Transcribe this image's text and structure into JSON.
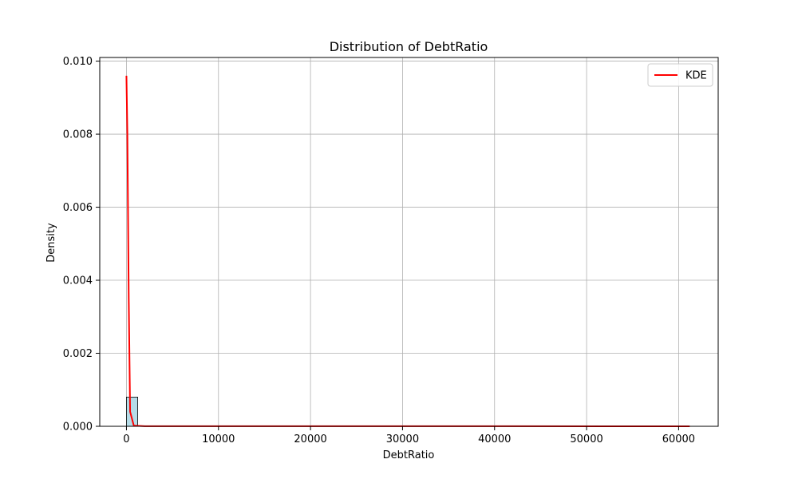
{
  "chart_data": {
    "type": "bar",
    "title": "Distribution of DebtRatio",
    "xlabel": "DebtRatio",
    "ylabel": "Density",
    "xlim": [
      -2900,
      64300
    ],
    "ylim": [
      0,
      0.0101
    ],
    "xticks": [
      0,
      10000,
      20000,
      30000,
      40000,
      50000,
      60000
    ],
    "xtick_labels": [
      "0",
      "10000",
      "20000",
      "30000",
      "40000",
      "50000",
      "60000"
    ],
    "yticks": [
      0,
      0.002,
      0.004,
      0.006,
      0.008,
      0.01
    ],
    "ytick_labels": [
      "0.000",
      "0.002",
      "0.004",
      "0.006",
      "0.008",
      "0.010"
    ],
    "grid": true,
    "legend_position": "top-right",
    "histogram": {
      "bin_width": 1225,
      "bins": [
        {
          "x0": 0,
          "x1": 1225,
          "density": 0.0008
        },
        {
          "x0": 1225,
          "x1": 2450,
          "density": 2e-06
        },
        {
          "x0": 2450,
          "x1": 3675,
          "density": 1e-06
        },
        {
          "x0": 3675,
          "x1": 4900,
          "density": 5e-07
        }
      ],
      "fill": "#add8e6",
      "edge": "#000000"
    },
    "series": [
      {
        "name": "KDE",
        "color": "#ff0000",
        "x": [
          0,
          100,
          250,
          400,
          800,
          2000,
          61200
        ],
        "y": [
          0.0096,
          0.008,
          0.0035,
          0.0004,
          2e-05,
          2e-06,
          1e-06
        ]
      }
    ]
  }
}
